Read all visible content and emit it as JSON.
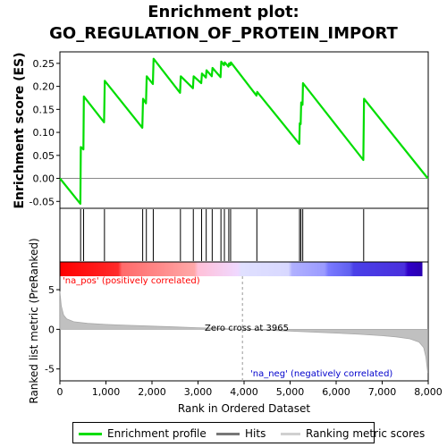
{
  "title_line1": "Enrichment plot:",
  "title_line2": "GO_REGULATION_OF_PROTEIN_IMPORT",
  "legend": {
    "enrichment": "Enrichment profile",
    "hits": "Hits",
    "ranking": "Ranking metric scores",
    "colors": {
      "enrichment": "#00dd00",
      "hits": "#777777",
      "ranking": "#d0d0d0"
    }
  },
  "chart_data": [
    {
      "type": "line",
      "name": "enrichment-score",
      "ylabel": "Enrichment score (ES)",
      "xlim": [
        0,
        8000
      ],
      "ylim": [
        -0.065,
        0.275
      ],
      "yticks": [
        -0.05,
        0.0,
        0.05,
        0.1,
        0.15,
        0.2,
        0.25
      ],
      "ytick_labels": [
        "-0.05",
        "0.00",
        "0.05",
        "0.10",
        "0.15",
        "0.20",
        "0.25"
      ],
      "x": [
        0,
        445,
        455,
        510,
        520,
        960,
        975,
        1790,
        1805,
        1870,
        1885,
        2020,
        2035,
        2610,
        2625,
        2890,
        2905,
        3070,
        3085,
        3170,
        3185,
        3300,
        3315,
        3490,
        3505,
        3565,
        3580,
        3660,
        3675,
        3700,
        3715,
        4270,
        4285,
        5200,
        5210,
        5230,
        5240,
        5270,
        5280,
        6590,
        6605,
        7990
      ],
      "y": [
        0.0,
        -0.055,
        0.068,
        0.063,
        0.178,
        0.122,
        0.212,
        0.11,
        0.173,
        0.163,
        0.222,
        0.205,
        0.26,
        0.186,
        0.222,
        0.196,
        0.222,
        0.207,
        0.228,
        0.219,
        0.235,
        0.222,
        0.24,
        0.22,
        0.254,
        0.246,
        0.252,
        0.243,
        0.25,
        0.246,
        0.252,
        0.18,
        0.188,
        0.075,
        0.12,
        0.118,
        0.165,
        0.16,
        0.207,
        0.04,
        0.173,
        0.0
      ],
      "color": "#00dd00"
    },
    {
      "type": "hits",
      "name": "hits",
      "x": [
        450,
        515,
        968,
        1798,
        1878,
        2028,
        2618,
        2898,
        3078,
        3178,
        3308,
        3498,
        3573,
        3668,
        3708,
        4278,
        5205,
        5235,
        5275,
        6598
      ],
      "color": "#000000"
    },
    {
      "type": "area",
      "name": "ranking-metric",
      "ylabel": "Ranked list metric (PreRanked)",
      "xlabel": "Rank in Ordered Dataset",
      "xlim": [
        0,
        8000
      ],
      "ylim": [
        -6.5,
        8.5
      ],
      "yticks": [
        -5,
        0,
        5
      ],
      "ytick_labels": [
        "-5",
        "0",
        "5"
      ],
      "xticks": [
        0,
        1000,
        2000,
        3000,
        4000,
        5000,
        6000,
        7000,
        8000
      ],
      "xtick_labels": [
        "0",
        "1,000",
        "2,000",
        "3,000",
        "4,000",
        "5,000",
        "6,000",
        "7,000",
        "8,000"
      ],
      "x": [
        0,
        30,
        80,
        150,
        300,
        600,
        1000,
        1500,
        2000,
        2500,
        3000,
        3500,
        3965,
        4500,
        5000,
        5500,
        6000,
        6500,
        7000,
        7300,
        7600,
        7800,
        7900,
        7950,
        7990
      ],
      "y": [
        4.8,
        3.0,
        1.8,
        1.3,
        0.95,
        0.75,
        0.62,
        0.5,
        0.4,
        0.3,
        0.2,
        0.1,
        0.0,
        -0.1,
        -0.22,
        -0.35,
        -0.48,
        -0.62,
        -0.8,
        -0.95,
        -1.2,
        -1.6,
        -2.3,
        -3.5,
        -5.5
      ],
      "color": "#c0c0c0",
      "zero_cross_label": "Zero cross at 3965",
      "zero_cross_x": 3965,
      "pos_label": "'na_pos' (positively correlated)",
      "neg_label": "'na_neg' (negatively correlated)"
    }
  ]
}
